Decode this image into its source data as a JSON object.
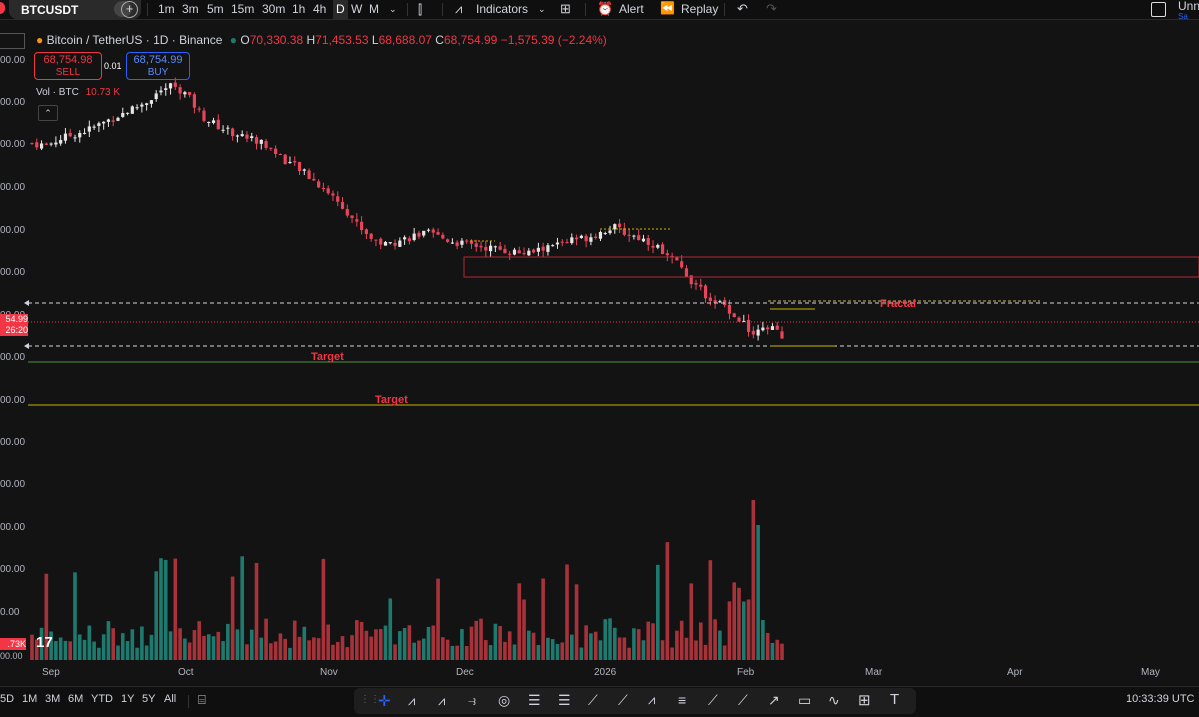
{
  "toolbar": {
    "symbol": "BTCUSDT",
    "intervals": [
      "1m",
      "3m",
      "5m",
      "15m",
      "30m",
      "1h",
      "4h",
      "D",
      "W",
      "M"
    ],
    "indicators": "Indicators",
    "alert": "Alert",
    "replay": "Replay",
    "right_label": "Unn",
    "right_sub": "Sa"
  },
  "legend": {
    "title": "Bitcoin / TetherUS · 1D · Binance",
    "open_label": "O",
    "open": "70,330.38",
    "high_label": "H",
    "high": "71,453.53",
    "low_label": "L",
    "low": "68,688.07",
    "close_label": "C",
    "close": "68,754.99",
    "change": "−1,575.39 (−2.24%)",
    "sell_price": "68,754.98",
    "sell_label": "SELL",
    "spread": "0.01",
    "buy_price": "68,754.99",
    "buy_label": "BUY",
    "vol_label": "Vol · BTC",
    "vol_value": "10.73 K"
  },
  "annotations": {
    "fractal": "Fractal",
    "target1": "Target",
    "target2": "Target"
  },
  "axis": {
    "left_ticks": [
      "00.00",
      "00.00",
      "00.00",
      "00.00",
      "00.00",
      "00.00",
      "00.00",
      "00.00",
      "00.00",
      "00.00",
      "00.00",
      "00.00",
      "00.00",
      "0.00"
    ],
    "price_tag": "54.99",
    "countdown": "26:20",
    "vol_tag": ".73K",
    "vol_zero": "00.00"
  },
  "xaxis": [
    "Sep",
    "Oct",
    "Nov",
    "Dec",
    "2026",
    "Feb",
    "Mar",
    "Apr",
    "May"
  ],
  "bottom": {
    "ranges": [
      "5D",
      "1M",
      "3M",
      "6M",
      "YTD",
      "1Y",
      "5Y",
      "All"
    ],
    "time": "10:33:39 UTC"
  },
  "colors": {
    "up": "#e6e6e6",
    "down": "#e8455a",
    "volUp": "#1e7a6f",
    "volDown": "#a8323a",
    "accent": "#f23645"
  },
  "chart_data": {
    "type": "candlestick",
    "title": "Bitcoin / TetherUS · 1D · Binance",
    "x_labels": [
      "Sep",
      "Oct",
      "Nov",
      "Dec",
      "2026",
      "Feb",
      "Mar",
      "Apr",
      "May"
    ],
    "last": {
      "open": 70330.38,
      "high": 71453.53,
      "low": 68688.07,
      "close": 68754.99,
      "volume_label": "10.73 K"
    },
    "trend": [
      112000,
      111500,
      113000,
      114000,
      115000,
      116500,
      118000,
      119500,
      121000,
      123500,
      125000,
      122500,
      118000,
      116000,
      114500,
      113500,
      112500,
      110500,
      108000,
      106000,
      103500,
      101000,
      98000,
      94000,
      91000,
      89500,
      90500,
      91500,
      92000,
      91000,
      90000,
      89500,
      89000,
      88500,
      88000,
      87500,
      88500,
      89500,
      90500,
      91000,
      92000,
      93500,
      92000,
      91000,
      89500,
      87000,
      84000,
      80000,
      77500,
      76000,
      73000,
      70000,
      71000,
      70330
    ]
  }
}
